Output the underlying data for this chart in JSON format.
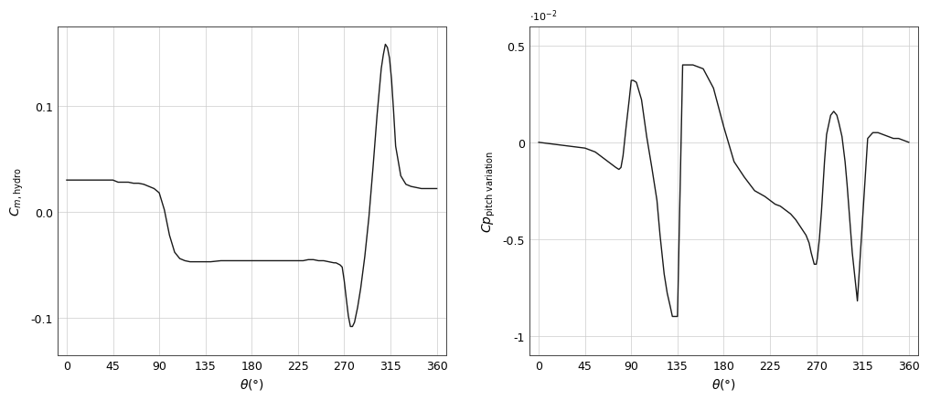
{
  "plot1": {
    "xlabel": "θ(°)",
    "ylabel": "$C_{m,\\mathrm{hydro}}$",
    "xticks": [
      0,
      45,
      90,
      135,
      180,
      225,
      270,
      315,
      360
    ],
    "xlim": [
      -9,
      369
    ],
    "ylim": [
      -0.135,
      0.175
    ],
    "yticks": [
      -0.1,
      0.0,
      0.1
    ],
    "x": [
      0,
      10,
      20,
      30,
      35,
      40,
      45,
      50,
      55,
      60,
      65,
      70,
      75,
      80,
      85,
      90,
      95,
      100,
      105,
      110,
      115,
      120,
      125,
      130,
      140,
      150,
      160,
      170,
      180,
      190,
      200,
      210,
      220,
      230,
      235,
      240,
      245,
      250,
      255,
      260,
      262,
      264,
      266,
      268,
      270,
      272,
      274,
      276,
      278,
      280,
      283,
      286,
      290,
      294,
      298,
      302,
      306,
      308,
      310,
      312,
      314,
      316,
      318,
      320,
      325,
      330,
      335,
      340,
      345,
      350,
      355,
      360
    ],
    "y": [
      0.03,
      0.03,
      0.03,
      0.03,
      0.03,
      0.03,
      0.03,
      0.028,
      0.028,
      0.028,
      0.027,
      0.027,
      0.026,
      0.024,
      0.022,
      0.018,
      0.002,
      -0.022,
      -0.038,
      -0.044,
      -0.046,
      -0.047,
      -0.047,
      -0.047,
      -0.047,
      -0.046,
      -0.046,
      -0.046,
      -0.046,
      -0.046,
      -0.046,
      -0.046,
      -0.046,
      -0.046,
      -0.045,
      -0.045,
      -0.046,
      -0.046,
      -0.047,
      -0.048,
      -0.048,
      -0.049,
      -0.05,
      -0.052,
      -0.065,
      -0.082,
      -0.098,
      -0.108,
      -0.108,
      -0.104,
      -0.09,
      -0.072,
      -0.042,
      -0.005,
      0.042,
      0.092,
      0.135,
      0.148,
      0.158,
      0.155,
      0.145,
      0.125,
      0.095,
      0.062,
      0.034,
      0.026,
      0.024,
      0.023,
      0.022,
      0.022,
      0.022,
      0.022
    ]
  },
  "plot2": {
    "xlabel": "θ(°)",
    "ylabel": "$Cp_{\\mathrm{pitch\\ variation}}$",
    "xticks": [
      0,
      45,
      90,
      135,
      180,
      225,
      270,
      315,
      360
    ],
    "xlim": [
      -9,
      369
    ],
    "ylim": [
      -0.011,
      0.006
    ],
    "yticks": [
      -1.0,
      -0.5,
      0.0,
      0.5
    ],
    "x": [
      0,
      15,
      30,
      45,
      55,
      60,
      65,
      70,
      75,
      78,
      80,
      82,
      85,
      88,
      90,
      92,
      95,
      100,
      105,
      110,
      115,
      118,
      120,
      122,
      125,
      128,
      130,
      135,
      140,
      150,
      160,
      170,
      180,
      190,
      200,
      210,
      220,
      225,
      230,
      235,
      240,
      245,
      250,
      255,
      260,
      263,
      265,
      267,
      268,
      270,
      271,
      273,
      275,
      278,
      280,
      284,
      287,
      290,
      292,
      295,
      298,
      300,
      305,
      310,
      315,
      320,
      325,
      330,
      335,
      340,
      345,
      350,
      355,
      360
    ],
    "y": [
      0.0,
      -0.0001,
      -0.0002,
      -0.0003,
      -0.0005,
      -0.0007,
      -0.0009,
      -0.0011,
      -0.0013,
      -0.0014,
      -0.0013,
      -0.0007,
      0.0008,
      0.0022,
      0.0032,
      0.0032,
      0.0031,
      0.0022,
      0.0003,
      -0.0013,
      -0.003,
      -0.0048,
      -0.0058,
      -0.0068,
      -0.0078,
      -0.0085,
      -0.009,
      -0.009,
      0.004,
      0.004,
      0.0038,
      0.0028,
      0.0008,
      -0.001,
      -0.0018,
      -0.0025,
      -0.0028,
      -0.003,
      -0.0032,
      -0.0033,
      -0.0035,
      -0.0037,
      -0.004,
      -0.0044,
      -0.0048,
      -0.0052,
      -0.0057,
      -0.0061,
      -0.0063,
      -0.0063,
      -0.006,
      -0.005,
      -0.0036,
      -0.001,
      0.0004,
      0.0014,
      0.0016,
      0.0014,
      0.001,
      0.0003,
      -0.001,
      -0.0022,
      -0.0057,
      -0.0082,
      -0.004,
      0.0002,
      0.0005,
      0.0005,
      0.0004,
      0.0003,
      0.0002,
      0.0002,
      0.0001,
      0.0
    ]
  },
  "line_color": "#1a1a1a",
  "line_width": 1.0,
  "grid_color": "#cccccc",
  "background_color": "#ffffff"
}
